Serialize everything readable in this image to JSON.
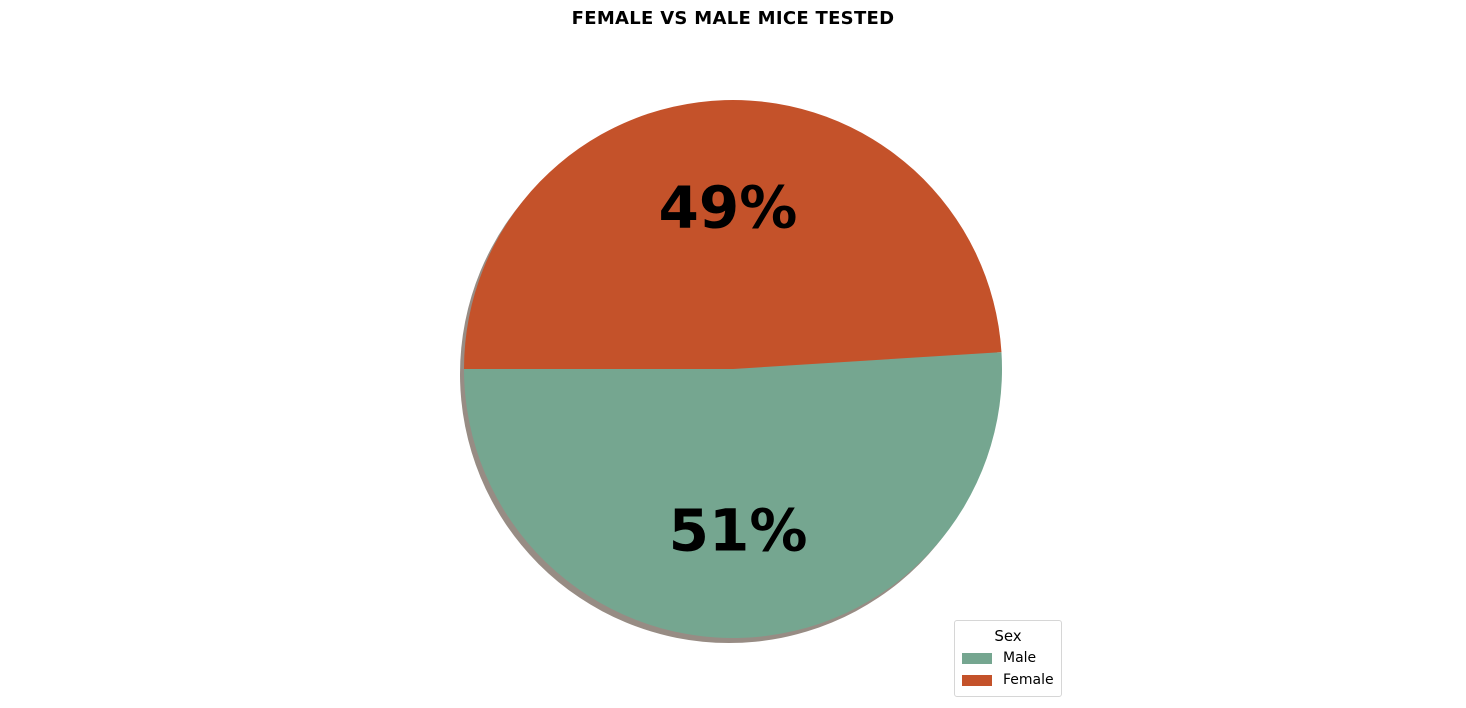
{
  "chart_data": {
    "type": "pie",
    "title": "FEMALE VS MALE MICE TESTED",
    "slices": [
      {
        "label": "Male",
        "value": 51,
        "display": "51%",
        "color": "#75a690"
      },
      {
        "label": "Female",
        "value": 49,
        "display": "49%",
        "color": "#c4522a"
      }
    ],
    "start_angle_deg": 180,
    "shadow": true,
    "legend": {
      "title": "Sex",
      "placement": "lower-right",
      "entries": [
        "Male",
        "Female"
      ]
    }
  }
}
